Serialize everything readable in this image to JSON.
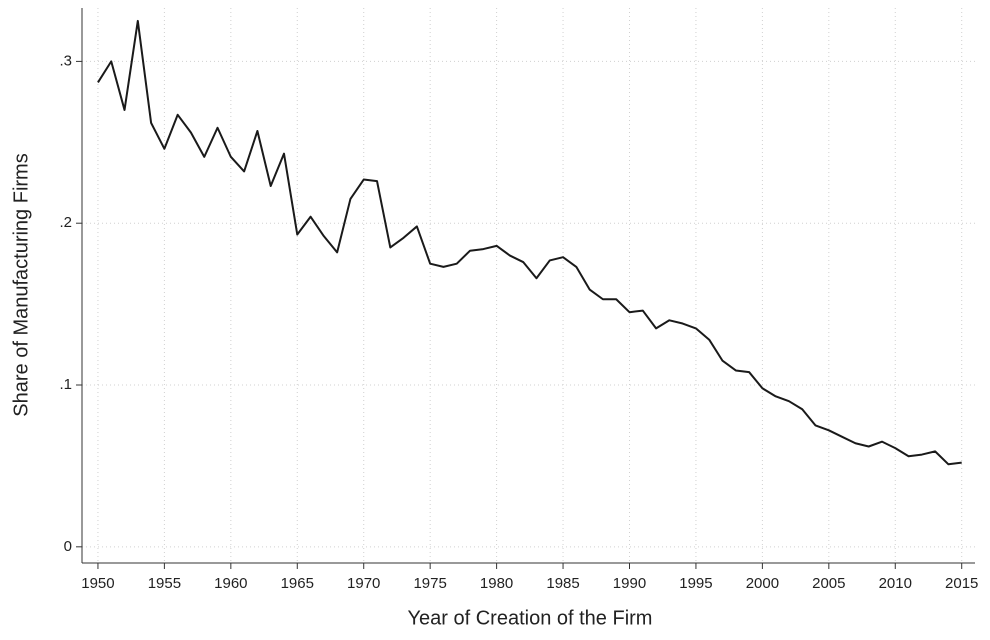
{
  "chart_data": {
    "type": "line",
    "x_label": "Year of Creation of the Firm",
    "y_label": "Share of Manufacturing Firms",
    "x": [
      1950,
      1951,
      1952,
      1953,
      1954,
      1955,
      1956,
      1957,
      1958,
      1959,
      1960,
      1961,
      1962,
      1963,
      1964,
      1965,
      1966,
      1967,
      1968,
      1969,
      1970,
      1971,
      1972,
      1973,
      1974,
      1975,
      1976,
      1977,
      1978,
      1979,
      1980,
      1981,
      1982,
      1983,
      1984,
      1985,
      1986,
      1987,
      1988,
      1989,
      1990,
      1991,
      1992,
      1993,
      1994,
      1995,
      1996,
      1997,
      1998,
      1999,
      2000,
      2001,
      2002,
      2003,
      2004,
      2005,
      2006,
      2007,
      2008,
      2009,
      2010,
      2011,
      2012,
      2013,
      2014,
      2015
    ],
    "values": [
      0.287,
      0.3,
      0.27,
      0.325,
      0.262,
      0.246,
      0.267,
      0.256,
      0.241,
      0.259,
      0.241,
      0.232,
      0.257,
      0.223,
      0.243,
      0.193,
      0.204,
      0.192,
      0.182,
      0.215,
      0.227,
      0.226,
      0.185,
      0.191,
      0.198,
      0.175,
      0.173,
      0.175,
      0.183,
      0.184,
      0.186,
      0.18,
      0.176,
      0.166,
      0.177,
      0.179,
      0.173,
      0.159,
      0.153,
      0.153,
      0.145,
      0.146,
      0.135,
      0.14,
      0.138,
      0.135,
      0.128,
      0.115,
      0.109,
      0.108,
      0.098,
      0.093,
      0.09,
      0.085,
      0.075,
      0.072,
      0.068,
      0.064,
      0.062,
      0.065,
      0.061,
      0.056,
      0.057,
      0.059,
      0.051,
      0.052
    ],
    "color": "#1a1a1a",
    "xlim": [
      1948.8,
      2016
    ],
    "ylim": [
      -0.01,
      0.333
    ],
    "xticks": [
      1950,
      1955,
      1960,
      1965,
      1970,
      1975,
      1980,
      1985,
      1990,
      1995,
      2000,
      2005,
      2010,
      2015
    ],
    "yticks": [
      0,
      {
        "value": 0.1,
        "label": ".1"
      },
      {
        "value": 0.2,
        "label": ".2"
      },
      {
        "value": 0.3,
        "label": ".3"
      }
    ],
    "grid": true
  }
}
